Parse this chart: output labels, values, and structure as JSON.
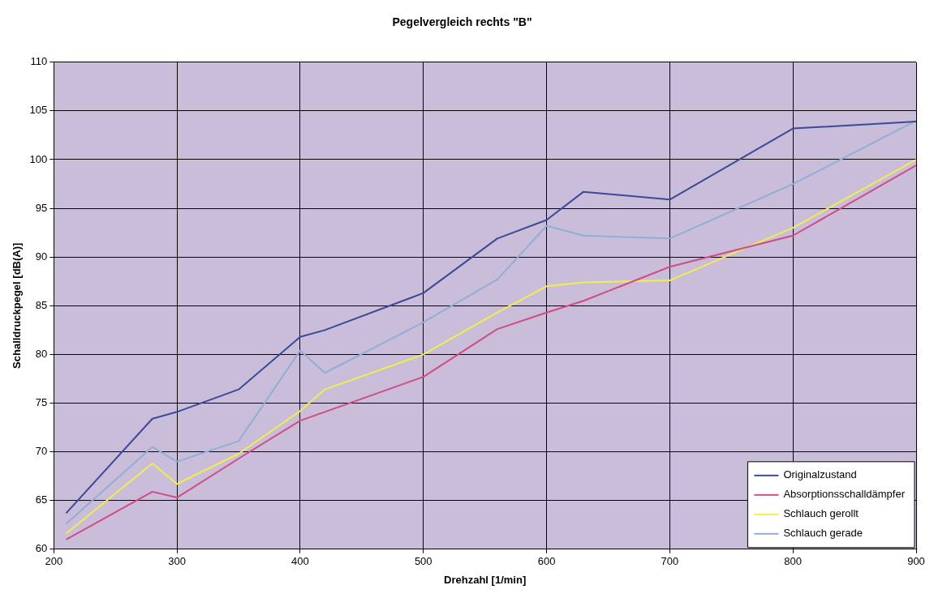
{
  "chart_data": {
    "type": "line",
    "title": "Pegelvergleich rechts \"B\"",
    "xlabel": "Drehzahl [1/min]",
    "ylabel": "Schalldruckpegel [dB(A)]",
    "x": [
      210,
      280,
      300,
      350,
      400,
      420,
      500,
      560,
      600,
      630,
      700,
      800,
      900
    ],
    "series": [
      {
        "name": "Originalzustand",
        "color": "#3b4a98",
        "values": [
          63.7,
          73.4,
          74.1,
          76.4,
          81.8,
          82.5,
          86.3,
          91.9,
          93.8,
          96.7,
          95.9,
          103.2,
          103.9
        ]
      },
      {
        "name": "Absorptionsschalldämpfer",
        "color": "#d04c86",
        "values": [
          61.0,
          65.9,
          65.3,
          69.3,
          73.2,
          74.1,
          77.7,
          82.6,
          84.3,
          85.5,
          89.0,
          92.2,
          99.4
        ]
      },
      {
        "name": "Schlauch gerollt",
        "color": "#f2ee4a",
        "values": [
          61.6,
          68.8,
          66.7,
          69.8,
          74.2,
          76.4,
          80.0,
          84.3,
          87.0,
          87.4,
          87.6,
          93.0,
          100.0
        ]
      },
      {
        "name": "Schlauch gerade",
        "color": "#8fb0d2",
        "values": [
          62.6,
          70.5,
          69.0,
          71.1,
          80.4,
          78.1,
          83.3,
          87.7,
          93.2,
          92.2,
          91.9,
          97.5,
          104.0
        ]
      }
    ],
    "xlim": [
      200,
      900
    ],
    "xticks": [
      200,
      300,
      400,
      500,
      600,
      700,
      800,
      900
    ],
    "ylim": [
      60,
      110
    ],
    "yticks": [
      60,
      65,
      70,
      75,
      80,
      85,
      90,
      95,
      100,
      105,
      110
    ],
    "grid": true,
    "legend": "bottom right",
    "marker": "none",
    "line_style": "solid"
  }
}
